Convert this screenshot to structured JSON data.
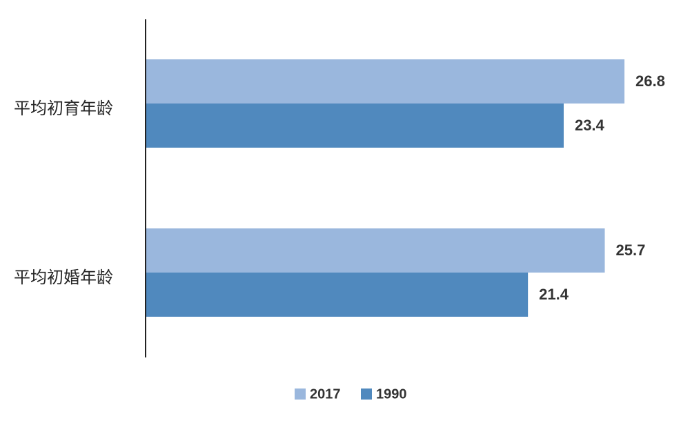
{
  "chart_data": {
    "type": "bar",
    "orientation": "horizontal",
    "categories": [
      "平均初育年龄",
      "平均初婚年龄"
    ],
    "series": [
      {
        "name": "2017",
        "values": [
          26.8,
          25.7
        ],
        "color": "#9ab7dd"
      },
      {
        "name": "1990",
        "values": [
          23.4,
          21.4
        ],
        "color": "#5089be"
      }
    ],
    "title": "",
    "xlabel": "",
    "ylabel": "",
    "xlim": [
      0,
      27.5
    ],
    "grid": false,
    "data_labels": true,
    "legend": {
      "position": "bottom",
      "entries": [
        "2017",
        "1990"
      ]
    }
  }
}
